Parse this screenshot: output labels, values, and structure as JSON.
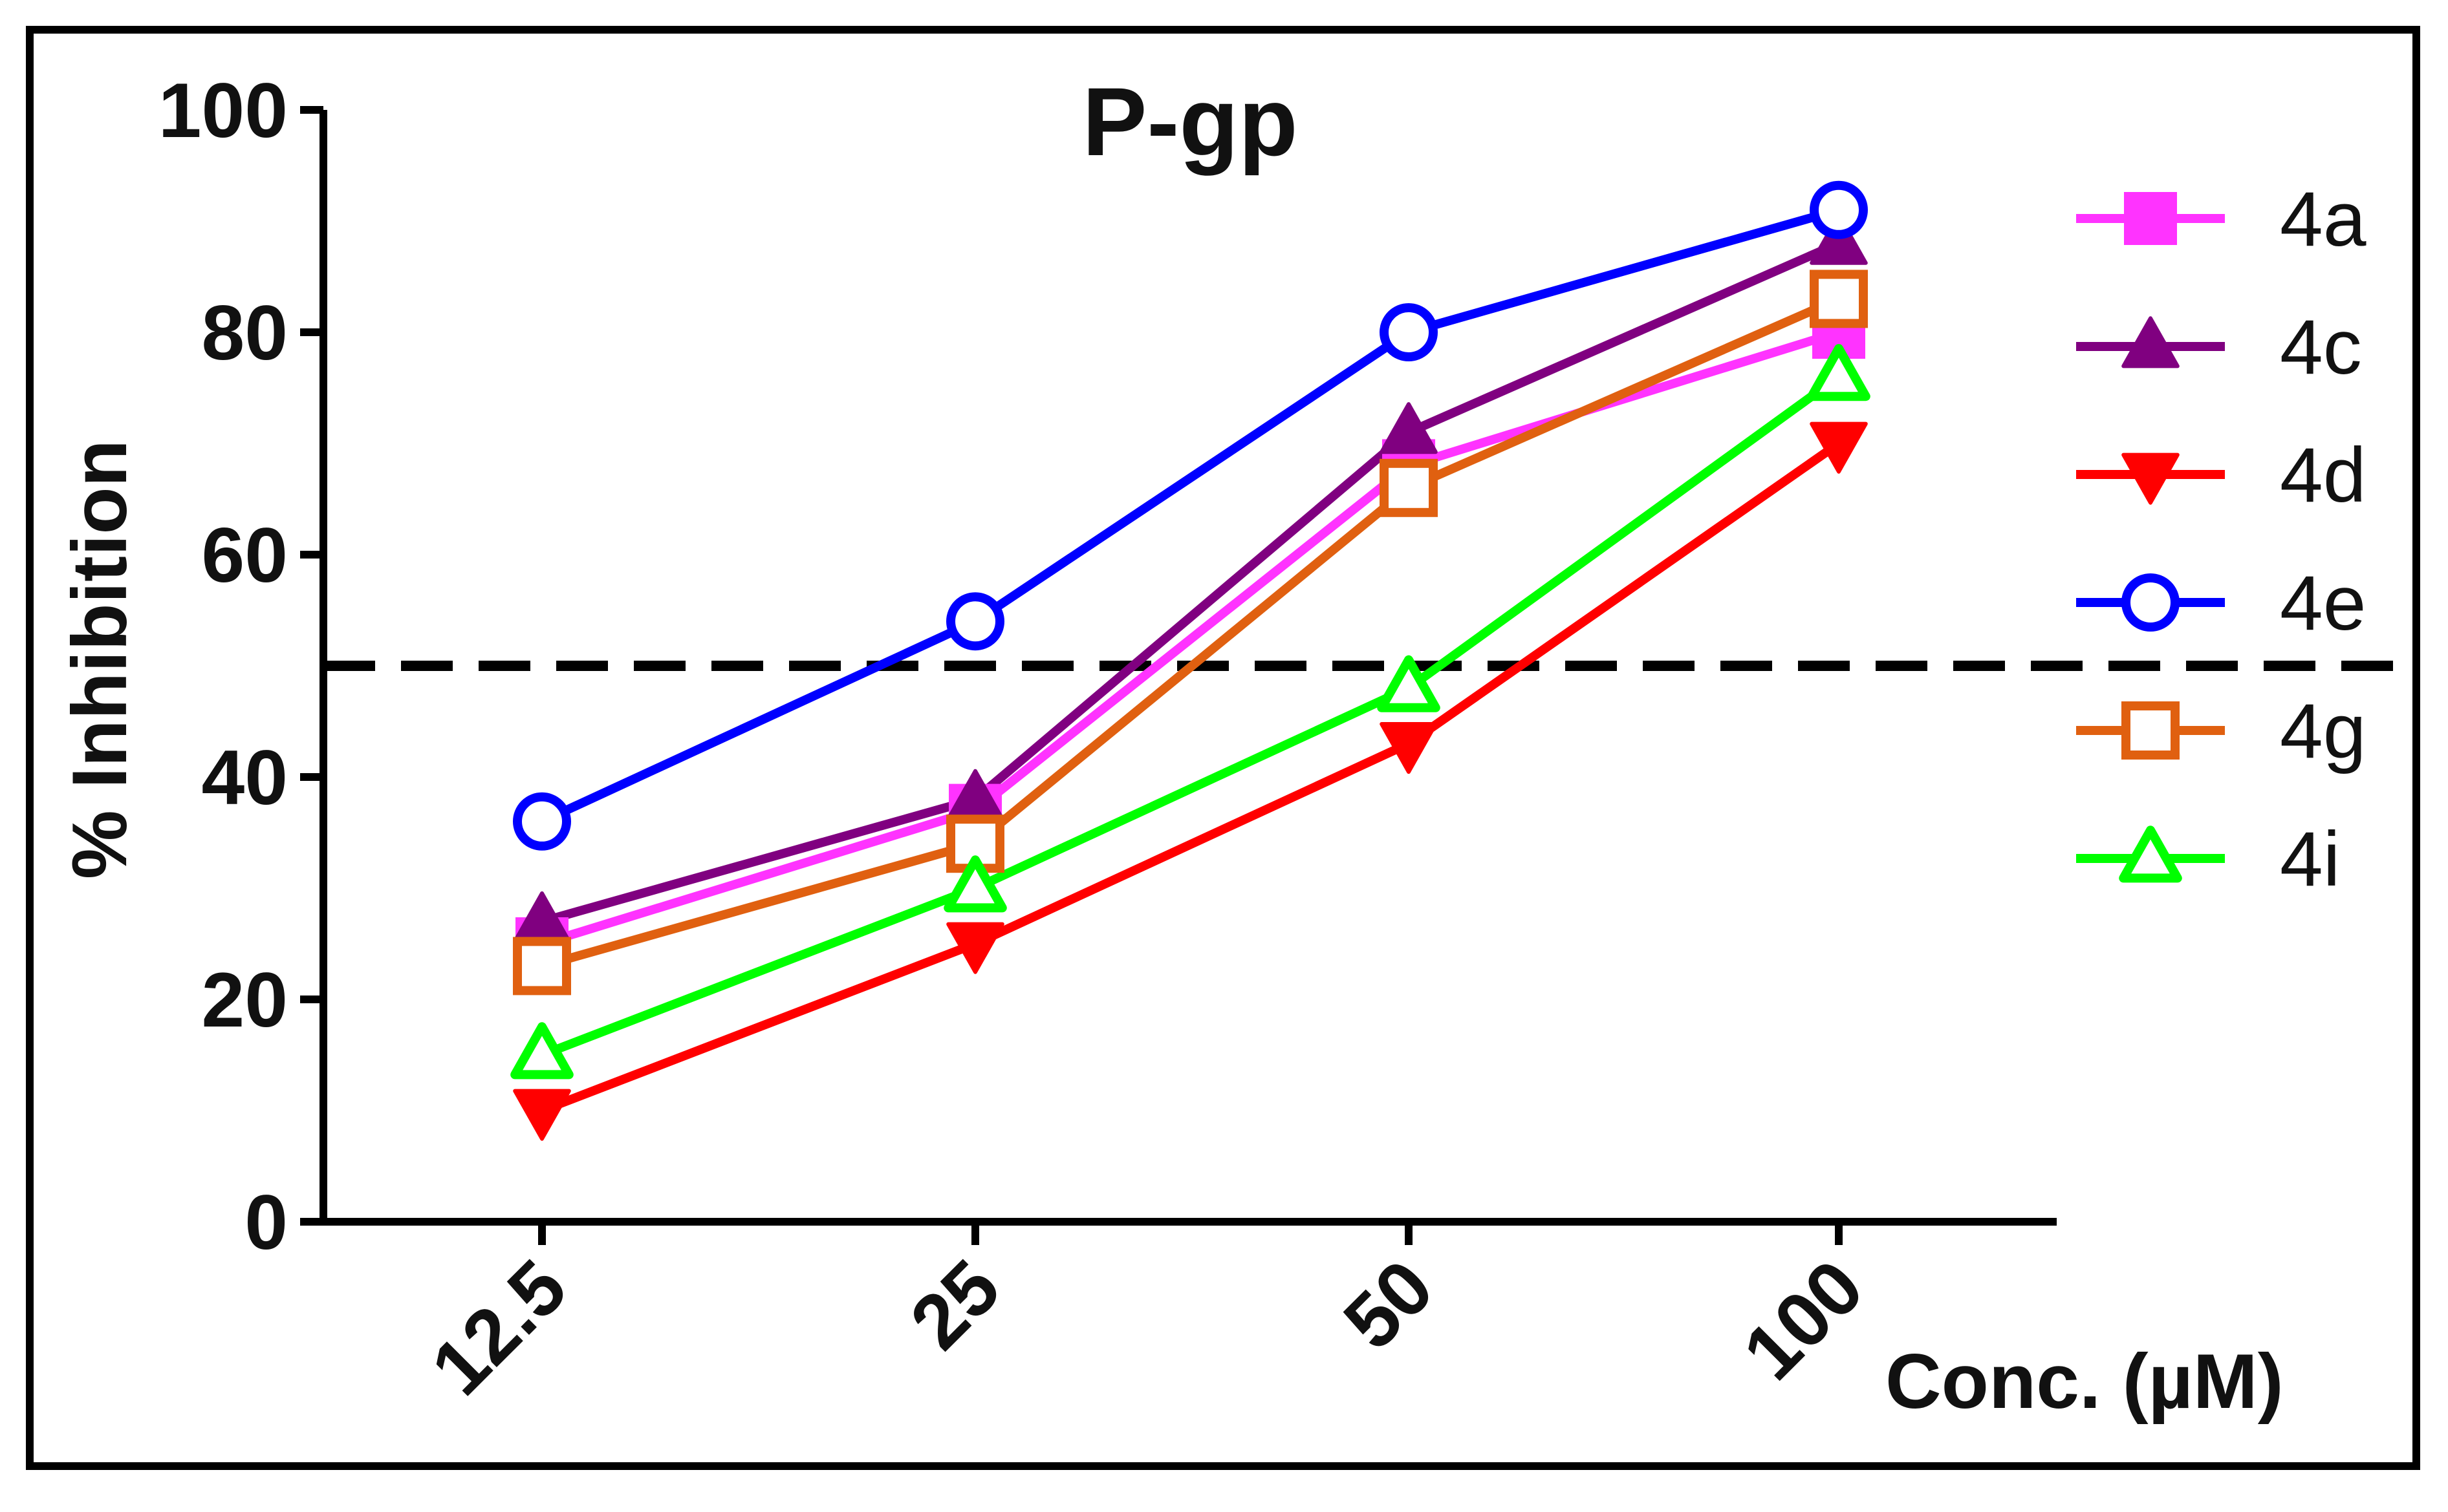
{
  "chart_data": {
    "type": "line",
    "title": "P-gp",
    "xlabel": "Conc. (µM)",
    "ylabel": "% Inhibition",
    "categories": [
      "12.5",
      "25",
      "50",
      "100"
    ],
    "ylim": [
      0,
      100
    ],
    "yticks": [
      "0",
      "20",
      "40",
      "60",
      "80",
      "100"
    ],
    "reference_line": {
      "y": 50,
      "style": "dashed",
      "color": "#000000"
    },
    "legend_position": "right",
    "grid": false,
    "series": [
      {
        "name": "4a",
        "marker": "square-filled",
        "color": "#ff33ff",
        "values": [
          25,
          37,
          68,
          80
        ]
      },
      {
        "name": "4c",
        "marker": "triangle-up-filled",
        "color": "#800080",
        "values": [
          27,
          38,
          71,
          88
        ]
      },
      {
        "name": "4d",
        "marker": "triangle-down-filled",
        "color": "#ff0000",
        "values": [
          10,
          25,
          43,
          70
        ]
      },
      {
        "name": "4e",
        "marker": "circle-open",
        "color": "#0000ff",
        "values": [
          36,
          54,
          80,
          91
        ]
      },
      {
        "name": "4g",
        "marker": "square-open",
        "color": "#e06010",
        "values": [
          23,
          34,
          66,
          83
        ]
      },
      {
        "name": "4i",
        "marker": "triangle-up-open",
        "color": "#00ff00",
        "values": [
          15,
          30,
          48,
          76
        ]
      }
    ]
  }
}
